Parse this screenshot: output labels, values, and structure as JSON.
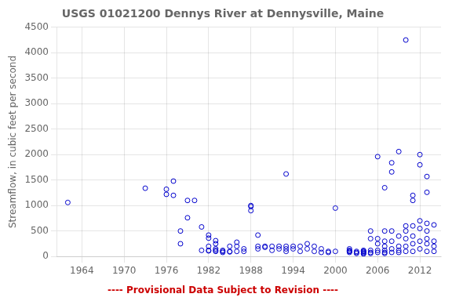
{
  "chart_data": {
    "type": "scatter",
    "title": "USGS 01021200 Dennys River at Dennysville, Maine",
    "ylabel": "Streamflow, in cubic feet per second",
    "annotations": [
      {
        "text": "---- Provisional Data Subject to Revision ----",
        "color": "#cc0000"
      }
    ],
    "xlim": [
      1960.5,
      2015.0
    ],
    "ylim": [
      0,
      4500
    ],
    "xticks": [
      1964,
      1970,
      1976,
      1982,
      1988,
      1994,
      2000,
      2006,
      2012
    ],
    "yticks": [
      0,
      500,
      1000,
      1500,
      2000,
      2500,
      3000,
      3500,
      4000,
      4500
    ],
    "grid": true,
    "color": "#0000cc",
    "marker": "open_circle",
    "x": [
      1962,
      1973,
      1976,
      1976,
      1977,
      1977,
      1978,
      1978,
      1979,
      1979,
      1980,
      1981,
      1981,
      1982,
      1982,
      1982,
      1982,
      1982,
      1983,
      1983,
      1983,
      1983,
      1983,
      1984,
      1984,
      1984,
      1985,
      1985,
      1985,
      1986,
      1986,
      1986,
      1987,
      1987,
      1988,
      1988,
      1988,
      1989,
      1989,
      1989,
      1990,
      1990,
      1991,
      1991,
      1992,
      1992,
      1993,
      1993,
      1993,
      1993,
      1994,
      1994,
      1995,
      1995,
      1996,
      1996,
      1997,
      1997,
      1998,
      1998,
      1999,
      1999,
      2000,
      2000,
      2002,
      2002,
      2002,
      2002,
      2002,
      2003,
      2003,
      2003,
      2004,
      2004,
      2004,
      2004,
      2004,
      2004,
      2005,
      2005,
      2005,
      2005,
      2005,
      2006,
      2006,
      2006,
      2006,
      2006,
      2007,
      2007,
      2007,
      2007,
      2007,
      2007,
      2007,
      2008,
      2008,
      2008,
      2008,
      2008,
      2008,
      2009,
      2009,
      2009,
      2009,
      2009,
      2010,
      2010,
      2010,
      2010,
      2010,
      2010,
      2011,
      2011,
      2011,
      2011,
      2011,
      2011,
      2012,
      2012,
      2012,
      2012,
      2012,
      2012,
      2013,
      2013,
      2013,
      2013,
      2013,
      2013,
      2013,
      2014,
      2014,
      2014,
      2014
    ],
    "values": [
      1060,
      1340,
      1220,
      1320,
      1480,
      1200,
      500,
      250,
      1100,
      760,
      1100,
      580,
      120,
      110,
      120,
      200,
      360,
      420,
      100,
      120,
      150,
      250,
      310,
      80,
      100,
      120,
      200,
      100,
      90,
      280,
      200,
      100,
      150,
      100,
      1000,
      980,
      900,
      420,
      200,
      150,
      180,
      200,
      200,
      120,
      200,
      150,
      1620,
      200,
      150,
      100,
      200,
      150,
      200,
      100,
      250,
      150,
      200,
      100,
      150,
      80,
      100,
      80,
      950,
      100,
      150,
      100,
      80,
      100,
      120,
      100,
      80,
      60,
      100,
      80,
      60,
      50,
      120,
      100,
      500,
      350,
      120,
      80,
      60,
      1960,
      350,
      250,
      120,
      80,
      1350,
      500,
      300,
      200,
      120,
      80,
      60,
      1660,
      1840,
      500,
      300,
      150,
      80,
      2060,
      400,
      200,
      120,
      80,
      4250,
      600,
      500,
      350,
      200,
      100,
      1200,
      1100,
      600,
      400,
      250,
      100,
      2000,
      1800,
      700,
      550,
      300,
      150,
      1570,
      1260,
      650,
      500,
      350,
      250,
      100,
      620,
      300,
      200,
      100
    ]
  }
}
